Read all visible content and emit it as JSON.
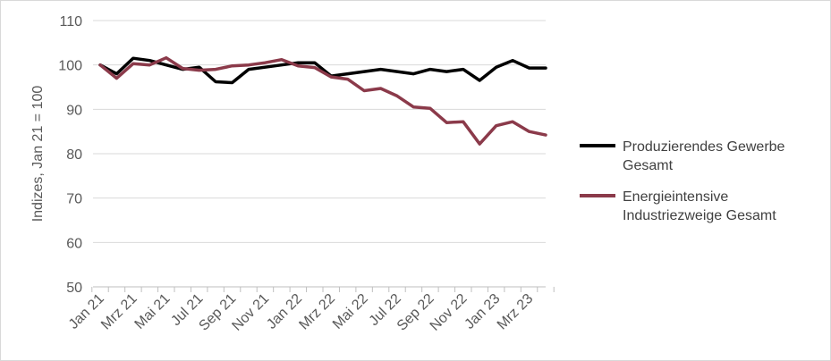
{
  "chart_data": {
    "type": "line",
    "title": "",
    "xlabel": "",
    "ylabel": "Indizes, Jan 21 = 100",
    "ylim": [
      50,
      110
    ],
    "yticks": [
      50,
      60,
      70,
      80,
      90,
      100,
      110
    ],
    "grid": "horizontal",
    "legend": "right",
    "x": [
      "Jan 21",
      "Feb 21",
      "Mrz 21",
      "Apr 21",
      "Mai 21",
      "Jun 21",
      "Jul 21",
      "Aug 21",
      "Sep 21",
      "Okt 21",
      "Nov 21",
      "Dez 21",
      "Jan 22",
      "Feb 22",
      "Mrz 22",
      "Apr 22",
      "Mai 22",
      "Jun 22",
      "Jul 22",
      "Aug 22",
      "Sep 22",
      "Okt 22",
      "Nov 22",
      "Dez 22",
      "Jan 23",
      "Feb 23",
      "Mrz 23",
      "Apr 23"
    ],
    "tick_labels": [
      "Jan 21",
      "Mrz 21",
      "Mai 21",
      "Jul 21",
      "Sep 21",
      "Nov 21",
      "Jan 22",
      "Mrz 22",
      "Mai 22",
      "Jul 22",
      "Sep 22",
      "Nov 22",
      "Jan 23",
      "Mrz 23"
    ],
    "series": [
      {
        "name_lines": [
          "Produzierendes Gewerbe",
          "Gesamt"
        ],
        "color": "#000000",
        "values": [
          100,
          98,
          101.5,
          101,
          100,
          99,
          99.5,
          96.2,
          96,
          99,
          99.5,
          100,
          100.5,
          100.5,
          97.5,
          98,
          98.5,
          99,
          98.5,
          98,
          99,
          98.5,
          99,
          96.5,
          99.5,
          101,
          99.3,
          99.3
        ]
      },
      {
        "name_lines": [
          "Energieintensive",
          "Industriezweige Gesamt"
        ],
        "color": "#8b3a4a",
        "values": [
          100,
          97,
          100.3,
          100,
          101.6,
          99.2,
          98.8,
          99,
          99.8,
          100,
          100.5,
          101.2,
          99.8,
          99.4,
          97.3,
          96.8,
          94.2,
          94.7,
          93,
          90.5,
          90.2,
          87,
          87.2,
          82.2,
          86.3,
          87.2,
          85,
          84.2
        ]
      }
    ]
  }
}
